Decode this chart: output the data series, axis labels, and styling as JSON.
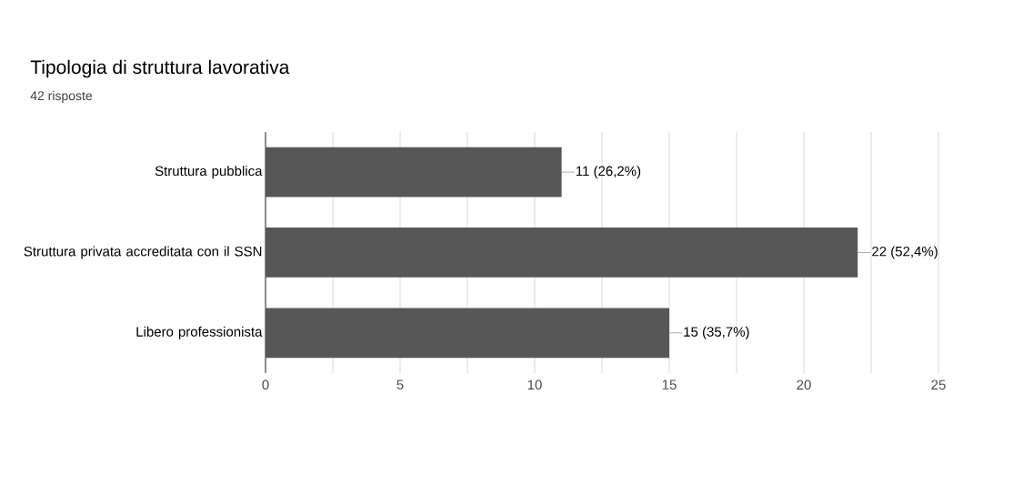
{
  "chart_data": {
    "type": "bar",
    "orientation": "horizontal",
    "title": "Tipologia di struttura lavorativa",
    "subtitle": "42 risposte",
    "categories": [
      "Struttura pubblica",
      "Struttura privata accreditata con il SSN",
      "Libero professionista"
    ],
    "values": [
      11,
      22,
      15
    ],
    "color": "#575757",
    "value_labels": [
      "11 (26,2%)",
      "22 (52,4%)",
      "15 (35,7%)"
    ],
    "xlim": [
      0,
      25
    ],
    "xticks": [
      0,
      5,
      10,
      15,
      20,
      25
    ],
    "grid": "x"
  }
}
